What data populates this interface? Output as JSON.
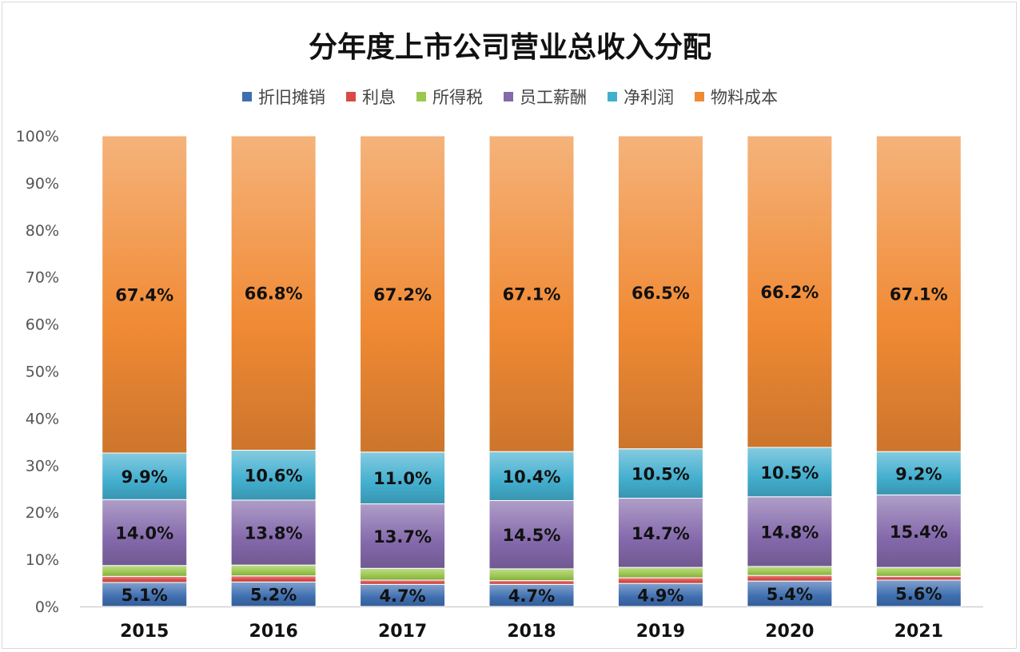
{
  "chart_data": {
    "type": "bar",
    "stacked": "percent",
    "title": "分年度上市公司营业总收入分配",
    "categories": [
      "2015",
      "2016",
      "2017",
      "2018",
      "2019",
      "2020",
      "2021"
    ],
    "ylim": [
      0,
      100
    ],
    "yticks": [
      "0%",
      "10%",
      "20%",
      "30%",
      "40%",
      "50%",
      "60%",
      "70%",
      "80%",
      "90%",
      "100%"
    ],
    "legend_position": "top",
    "grid": false,
    "series": [
      {
        "name": "折旧摊销",
        "color": "#3e6eb0",
        "values": [
          5.1,
          5.2,
          4.7,
          4.7,
          4.9,
          5.4,
          5.6
        ],
        "labeled": true
      },
      {
        "name": "利息",
        "color": "#d94a45",
        "values": [
          1.3,
          1.3,
          0.9,
          0.8,
          1.2,
          1.2,
          0.8
        ],
        "labeled": false
      },
      {
        "name": "所得税",
        "color": "#9cc850",
        "values": [
          2.3,
          2.3,
          2.5,
          2.5,
          2.2,
          1.9,
          1.9
        ],
        "labeled": false
      },
      {
        "name": "员工薪酬",
        "color": "#8469ab",
        "values": [
          14.0,
          13.8,
          13.7,
          14.5,
          14.7,
          14.8,
          15.4
        ],
        "labeled": true
      },
      {
        "name": "净利润",
        "color": "#43afcf",
        "values": [
          9.9,
          10.6,
          11.0,
          10.4,
          10.5,
          10.5,
          9.2
        ],
        "labeled": true
      },
      {
        "name": "物料成本",
        "color": "#f08a34",
        "values": [
          67.4,
          66.8,
          67.2,
          67.1,
          66.5,
          66.2,
          67.1
        ],
        "labeled": true
      }
    ]
  }
}
